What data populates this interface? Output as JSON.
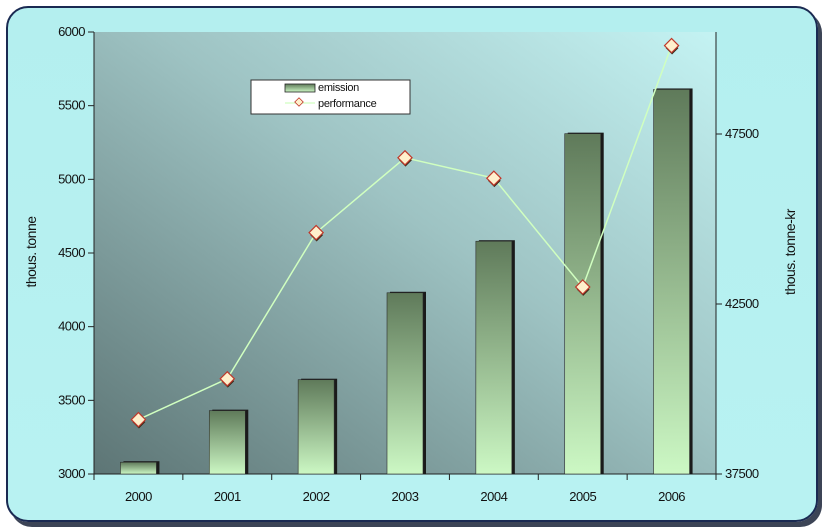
{
  "chart_data": {
    "type": "bar",
    "categories": [
      "2000",
      "2001",
      "2002",
      "2003",
      "2004",
      "2005",
      "2006"
    ],
    "series": [
      {
        "name": "emission",
        "type": "bar",
        "axis": "left",
        "values": [
          3080,
          3430,
          3640,
          4230,
          4580,
          5310,
          5610
        ]
      },
      {
        "name": "performance",
        "type": "line",
        "axis": "right",
        "values": [
          39100,
          40300,
          44600,
          46800,
          46200,
          43000,
          50100
        ]
      }
    ],
    "ylabel": "thous. tonne",
    "y2label": "thous. tonne-kr",
    "ylim": [
      3000,
      6000
    ],
    "y2lim": [
      37500,
      50500
    ],
    "yticks": [
      "3000",
      "3500",
      "4000",
      "4500",
      "5000",
      "5500",
      "6000"
    ],
    "y2ticks": [
      "37500",
      "42500",
      "47500"
    ],
    "legend_position": "top-left inside plot",
    "grid": false,
    "colors": {
      "bar_top": "#5f7a5a",
      "bar_bottom": "#ccf8c4",
      "line": "#d0ffc0",
      "marker_fill": "#fff0cc",
      "marker_stroke": "#c0392b",
      "plot_bg_light": "#c4f3f3",
      "plot_bg_dark": "#5d7575"
    }
  }
}
